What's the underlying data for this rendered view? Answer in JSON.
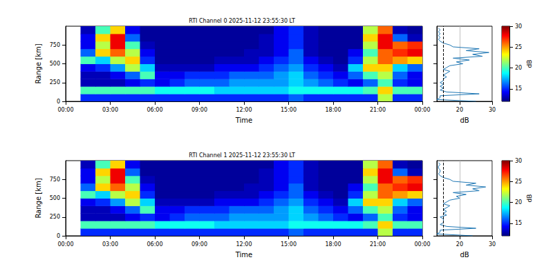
{
  "chart_data": [
    {
      "type": "heatmap",
      "title": "RTI Channel 0 2025-11-12 23:55:30 LT",
      "x_label": "Time",
      "y_label": "Range [km]",
      "xlim": [
        0,
        24
      ],
      "xticks": [
        {
          "value": 0,
          "label": "00:00"
        },
        {
          "value": 3,
          "label": "03:00"
        },
        {
          "value": 6,
          "label": "06:00"
        },
        {
          "value": 9,
          "label": "09:00"
        },
        {
          "value": 12,
          "label": "12:00"
        },
        {
          "value": 15,
          "label": "15:00"
        },
        {
          "value": 18,
          "label": "18:00"
        },
        {
          "value": 21,
          "label": "21:00"
        },
        {
          "value": 24,
          "label": "00:00"
        }
      ],
      "ylim": [
        0,
        1000
      ],
      "yticks": [
        0,
        250,
        500,
        750
      ],
      "x_edges": [
        0,
        1,
        2,
        3,
        4,
        5,
        6,
        7,
        8,
        9,
        10,
        11,
        12,
        13,
        14,
        15,
        16,
        17,
        18,
        19,
        20,
        21,
        22,
        23,
        24
      ],
      "y_edges": [
        0,
        100,
        200,
        300,
        400,
        500,
        600,
        700,
        800,
        900,
        1000
      ],
      "cells": [
        [
          null,
          15,
          15,
          15,
          15,
          15,
          15,
          15,
          15,
          15,
          15,
          15,
          15,
          15,
          15,
          16,
          15,
          15,
          15,
          15,
          15,
          22,
          15,
          15
        ],
        [
          null,
          20,
          20,
          20,
          20,
          20,
          19,
          19,
          19,
          19,
          18,
          18,
          18,
          18,
          18,
          19,
          19,
          19,
          19,
          19,
          20,
          24,
          20,
          20
        ],
        [
          null,
          13,
          13,
          13,
          14,
          15,
          14,
          15,
          16,
          16,
          16,
          17,
          17,
          17,
          17,
          18,
          17,
          16,
          15,
          14,
          16,
          20,
          15,
          14
        ],
        [
          null,
          13,
          13,
          14,
          16,
          20,
          14,
          14,
          15,
          15,
          15,
          16,
          16,
          16,
          17,
          18,
          16,
          15,
          14,
          16,
          20,
          22,
          16,
          14
        ],
        [
          null,
          14,
          15,
          17,
          22,
          18,
          13,
          13,
          13,
          13,
          14,
          14,
          14,
          15,
          16,
          17,
          15,
          14,
          13,
          18,
          24,
          24,
          18,
          16
        ],
        [
          null,
          20,
          18,
          22,
          24,
          15,
          12.5,
          12.5,
          12.5,
          12.5,
          13,
          13,
          13,
          14,
          15,
          16,
          14,
          13,
          12.5,
          15,
          22,
          26,
          25,
          24
        ],
        [
          null,
          16,
          24,
          26,
          22,
          14,
          12.5,
          12.5,
          12.5,
          12.5,
          12.5,
          12.5,
          13,
          13,
          14,
          16,
          13,
          12.5,
          12.5,
          14,
          20,
          26,
          27,
          28
        ],
        [
          null,
          14,
          22,
          28,
          20,
          13,
          12.5,
          12.5,
          12.5,
          12.5,
          12.5,
          12.5,
          12.5,
          13,
          14,
          15,
          13,
          12.5,
          12.5,
          12.5,
          22,
          28,
          26,
          27
        ],
        [
          null,
          14,
          24,
          28,
          16,
          12.5,
          12.5,
          12.5,
          12.5,
          12.5,
          12.5,
          12.5,
          12.5,
          13,
          14,
          15,
          13,
          12.5,
          12.5,
          12.5,
          24,
          28,
          16,
          13
        ],
        [
          null,
          13,
          20,
          24,
          14,
          12.5,
          12.5,
          12.5,
          12.5,
          12.5,
          12.5,
          12.5,
          12.5,
          12.5,
          14,
          15,
          13,
          12.5,
          12.5,
          12.5,
          22,
          26,
          13,
          12.5
        ]
      ],
      "colorbar": {
        "range": [
          12,
          30
        ],
        "ticks": [
          15,
          20,
          25,
          30
        ],
        "label": "dB"
      },
      "profile": {
        "x_label": "dB",
        "xlim": [
          13,
          30
        ],
        "xticks": [
          20,
          30
        ],
        "grid": true,
        "threshold": 15,
        "color": "#1f77b4",
        "range": [
          0,
          25,
          50,
          75,
          100,
          125,
          150,
          175,
          200,
          225,
          250,
          275,
          300,
          325,
          350,
          375,
          400,
          425,
          450,
          475,
          500,
          525,
          550,
          575,
          600,
          625,
          650,
          675,
          700,
          725,
          750,
          775,
          800,
          825,
          850,
          875,
          900,
          925,
          950,
          975
        ],
        "values": [
          25,
          13,
          14,
          14,
          26,
          16,
          14,
          15,
          14,
          15,
          14,
          15,
          15,
          16,
          15,
          16,
          17,
          15,
          16,
          17,
          21,
          19,
          23,
          18,
          27,
          24,
          29,
          22,
          26,
          18,
          17,
          15,
          14,
          13.5,
          14,
          13.5,
          14,
          13.5,
          14,
          13.5
        ]
      }
    },
    {
      "type": "heatmap",
      "title": "RTI Channel 1 2025-11-12 23:55:30 LT",
      "x_label": "Time",
      "y_label": "Range [km]",
      "xlim": [
        0,
        24
      ],
      "xticks": [
        {
          "value": 0,
          "label": "00:00"
        },
        {
          "value": 3,
          "label": "03:00"
        },
        {
          "value": 6,
          "label": "06:00"
        },
        {
          "value": 9,
          "label": "09:00"
        },
        {
          "value": 12,
          "label": "12:00"
        },
        {
          "value": 15,
          "label": "15:00"
        },
        {
          "value": 18,
          "label": "18:00"
        },
        {
          "value": 21,
          "label": "21:00"
        },
        {
          "value": 24,
          "label": "00:00"
        }
      ],
      "ylim": [
        0,
        1000
      ],
      "yticks": [
        0,
        250,
        500,
        750
      ],
      "x_edges": [
        0,
        1,
        2,
        3,
        4,
        5,
        6,
        7,
        8,
        9,
        10,
        11,
        12,
        13,
        14,
        15,
        16,
        17,
        18,
        19,
        20,
        21,
        22,
        23,
        24
      ],
      "y_edges": [
        0,
        100,
        200,
        300,
        400,
        500,
        600,
        700,
        800,
        900,
        1000
      ],
      "cells": [
        [
          null,
          15,
          15,
          15,
          15,
          15,
          15,
          15,
          15,
          15,
          15,
          15,
          15,
          15,
          15,
          16,
          15,
          15,
          15,
          15,
          15,
          22,
          15,
          15
        ],
        [
          null,
          20,
          20,
          20,
          20,
          20,
          19,
          19,
          19,
          19,
          18,
          18,
          18,
          18,
          18,
          19,
          19,
          19,
          19,
          19,
          20,
          24,
          20,
          20
        ],
        [
          null,
          13,
          13,
          13,
          14,
          15,
          14,
          15,
          16,
          16,
          16,
          17,
          17,
          17,
          17,
          18,
          17,
          16,
          15,
          14,
          16,
          20,
          15,
          14
        ],
        [
          null,
          13,
          13,
          14,
          16,
          20,
          14,
          14,
          15,
          15,
          15,
          16,
          16,
          16,
          17,
          18,
          16,
          15,
          14,
          16,
          20,
          22,
          16,
          14
        ],
        [
          null,
          14,
          15,
          17,
          22,
          18,
          13,
          13,
          13,
          13,
          14,
          14,
          14,
          15,
          16,
          17,
          15,
          14,
          13,
          18,
          24,
          24,
          18,
          16
        ],
        [
          null,
          20,
          18,
          22,
          24,
          15,
          12.5,
          12.5,
          12.5,
          12.5,
          13,
          13,
          13,
          14,
          15,
          16,
          14,
          13,
          12.5,
          15,
          22,
          26,
          25,
          24
        ],
        [
          null,
          16,
          24,
          26,
          22,
          14,
          12.5,
          12.5,
          12.5,
          12.5,
          12.5,
          12.5,
          13,
          13,
          14,
          16,
          13,
          12.5,
          12.5,
          14,
          20,
          26,
          27,
          28
        ],
        [
          null,
          14,
          22,
          28,
          20,
          13,
          12.5,
          12.5,
          12.5,
          12.5,
          12.5,
          12.5,
          12.5,
          13,
          14,
          15,
          13,
          12.5,
          12.5,
          12.5,
          22,
          28,
          26,
          27
        ],
        [
          null,
          14,
          24,
          28,
          16,
          12.5,
          12.5,
          12.5,
          12.5,
          12.5,
          12.5,
          12.5,
          12.5,
          13,
          14,
          15,
          13,
          12.5,
          12.5,
          12.5,
          24,
          28,
          16,
          13
        ],
        [
          null,
          13,
          20,
          24,
          14,
          12.5,
          12.5,
          12.5,
          12.5,
          12.5,
          12.5,
          12.5,
          12.5,
          12.5,
          14,
          15,
          13,
          12.5,
          12.5,
          12.5,
          22,
          26,
          13,
          12.5
        ]
      ],
      "colorbar": {
        "range": [
          12,
          30
        ],
        "ticks": [
          15,
          20,
          25,
          30
        ],
        "label": "dB"
      },
      "profile": {
        "x_label": "dB",
        "xlim": [
          13,
          30
        ],
        "xticks": [
          20,
          30
        ],
        "grid": true,
        "threshold": 15,
        "color": "#1f77b4",
        "range": [
          0,
          25,
          50,
          75,
          100,
          125,
          150,
          175,
          200,
          225,
          250,
          275,
          300,
          325,
          350,
          375,
          400,
          425,
          450,
          475,
          500,
          525,
          550,
          575,
          600,
          625,
          650,
          675,
          700,
          725,
          750,
          775,
          800,
          825,
          850,
          875,
          900,
          925,
          950,
          975
        ],
        "values": [
          24,
          13,
          14,
          14,
          25,
          16,
          14,
          15,
          15,
          15,
          14,
          16,
          15,
          16,
          15,
          16,
          17,
          15,
          16,
          17,
          20,
          19,
          22,
          18,
          26,
          24,
          28,
          22,
          25,
          18,
          17,
          15,
          14,
          13.5,
          14,
          14,
          13.5,
          13.5,
          14,
          13.5
        ]
      }
    }
  ]
}
